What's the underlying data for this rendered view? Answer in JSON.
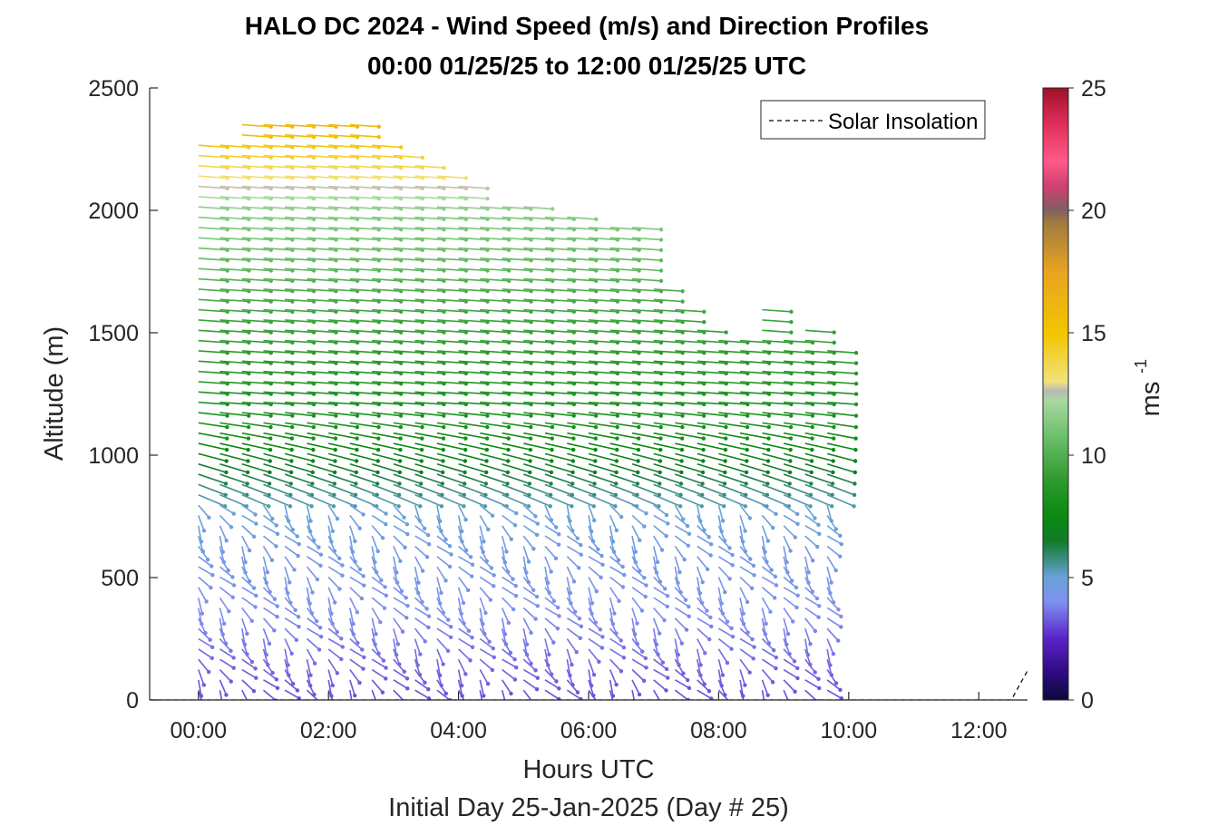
{
  "chart_data": {
    "type": "wind-barb-profile",
    "title": "HALO DC 2024 - Wind Speed (m/s) and Direction Profiles",
    "subtitle": "00:00 01/25/25 to 12:00 01/25/25  UTC",
    "xlabel": "Hours UTC",
    "xlabel2": "Initial Day 25-Jan-2025 (Day # 25)",
    "ylabel": "Altitude (m)",
    "xlim": [
      -0.75,
      12.75
    ],
    "ylim": [
      0,
      2500
    ],
    "x_ticks": [
      0,
      2,
      4,
      6,
      8,
      10,
      12
    ],
    "x_tick_labels": [
      "00:00",
      "02:00",
      "04:00",
      "06:00",
      "08:00",
      "10:00",
      "12:00"
    ],
    "y_ticks": [
      0,
      500,
      1000,
      1500,
      2000,
      2500
    ],
    "y_tick_labels": [
      "0",
      "500",
      "1000",
      "1500",
      "2000",
      "2500"
    ],
    "colorbar": {
      "label": "ms",
      "label_exponent": "-1",
      "range": [
        0,
        25
      ],
      "ticks": [
        0,
        5,
        10,
        15,
        20,
        25
      ],
      "tick_labels": [
        "0",
        "5",
        "10",
        "15",
        "20",
        "25"
      ]
    },
    "legend": {
      "entries": [
        "Solar Insolation"
      ],
      "position": "top-right"
    },
    "profile_times_hours": [
      0.0,
      0.33,
      0.67,
      1.0,
      1.33,
      1.67,
      2.0,
      2.33,
      2.67,
      3.0,
      3.33,
      3.67,
      4.0,
      4.33,
      4.67,
      5.0,
      5.33,
      5.67,
      6.0,
      6.33,
      6.67,
      7.0,
      7.33,
      7.67,
      8.0,
      8.33,
      8.67,
      9.0,
      9.33,
      9.67
    ],
    "profile_top_altitudes_m": [
      2300,
      2300,
      2350,
      2350,
      2350,
      2350,
      2350,
      2350,
      2300,
      2250,
      2200,
      2150,
      2100,
      2050,
      2050,
      2050,
      2000,
      2000,
      1950,
      1950,
      1950,
      1700,
      1600,
      1550,
      1500,
      1500,
      1600,
      1500,
      1550,
      1450
    ],
    "speed_profile": [
      {
        "altitude_m": 0,
        "speed_ms": 3.0
      },
      {
        "altitude_m": 400,
        "speed_ms": 4.0
      },
      {
        "altitude_m": 800,
        "speed_ms": 5.0
      },
      {
        "altitude_m": 1100,
        "speed_ms": 8.0
      },
      {
        "altitude_m": 1600,
        "speed_ms": 9.5
      },
      {
        "altitude_m": 2000,
        "speed_ms": 11.5
      },
      {
        "altitude_m": 2250,
        "speed_ms": 14.5
      },
      {
        "altitude_m": 2350,
        "speed_ms": 16.0
      }
    ],
    "solar_insolation": {
      "x": [
        -0.75,
        12.5,
        12.75
      ],
      "y": [
        0,
        0,
        120
      ]
    }
  }
}
